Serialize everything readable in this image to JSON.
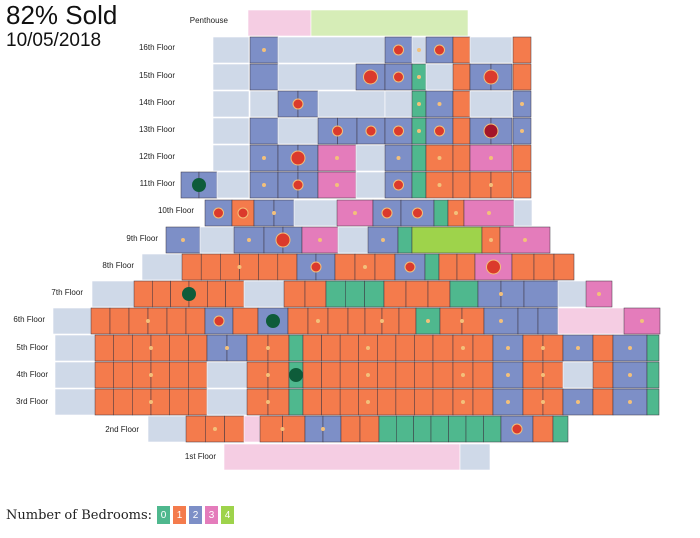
{
  "header": {
    "sold_text": "82% Sold",
    "date": "10/05/2018"
  },
  "colors": {
    "bed0": "#4fb88e",
    "bed1": "#f47b4c",
    "bed2": "#7d8fc7",
    "bed3": "#e47cbb",
    "bed4": "#9ed34b",
    "available": "#cfd9e8",
    "penthouse_pink": "#f5cde3",
    "penthouse_green": "#d6edb7",
    "dot_red": "#db3a2c",
    "dot_dark_red": "#a3152a",
    "dot_green": "#0e5c3a",
    "dot_light": "#f3c07a"
  },
  "floors": [
    {
      "id": "penthouse",
      "label": "Penthouse"
    },
    {
      "id": "f16",
      "label": "16th Floor"
    },
    {
      "id": "f15",
      "label": "15th Floor"
    },
    {
      "id": "f14",
      "label": "14th Floor"
    },
    {
      "id": "f13",
      "label": "13th Floor"
    },
    {
      "id": "f12",
      "label": "12th Floor"
    },
    {
      "id": "f11",
      "label": "11th Floor"
    },
    {
      "id": "f10",
      "label": "10th Floor"
    },
    {
      "id": "f9",
      "label": "9th Floor"
    },
    {
      "id": "f8",
      "label": "8th Floor"
    },
    {
      "id": "f7",
      "label": "7th Floor"
    },
    {
      "id": "f6",
      "label": "6th Floor"
    },
    {
      "id": "f5",
      "label": "5th Floor"
    },
    {
      "id": "f4",
      "label": "4th Floor"
    },
    {
      "id": "f3",
      "label": "3rd Floor"
    },
    {
      "id": "f2",
      "label": "2nd Floor"
    },
    {
      "id": "f1",
      "label": "1st Floor"
    }
  ],
  "legend": {
    "title": "Number of Bedrooms:",
    "items": [
      {
        "label": "0",
        "color": "#4fb88e"
      },
      {
        "label": "1",
        "color": "#f47b4c"
      },
      {
        "label": "2",
        "color": "#7d8fc7"
      },
      {
        "label": "3",
        "color": "#e47cbb"
      },
      {
        "label": "4",
        "color": "#9ed34b"
      }
    ]
  }
}
